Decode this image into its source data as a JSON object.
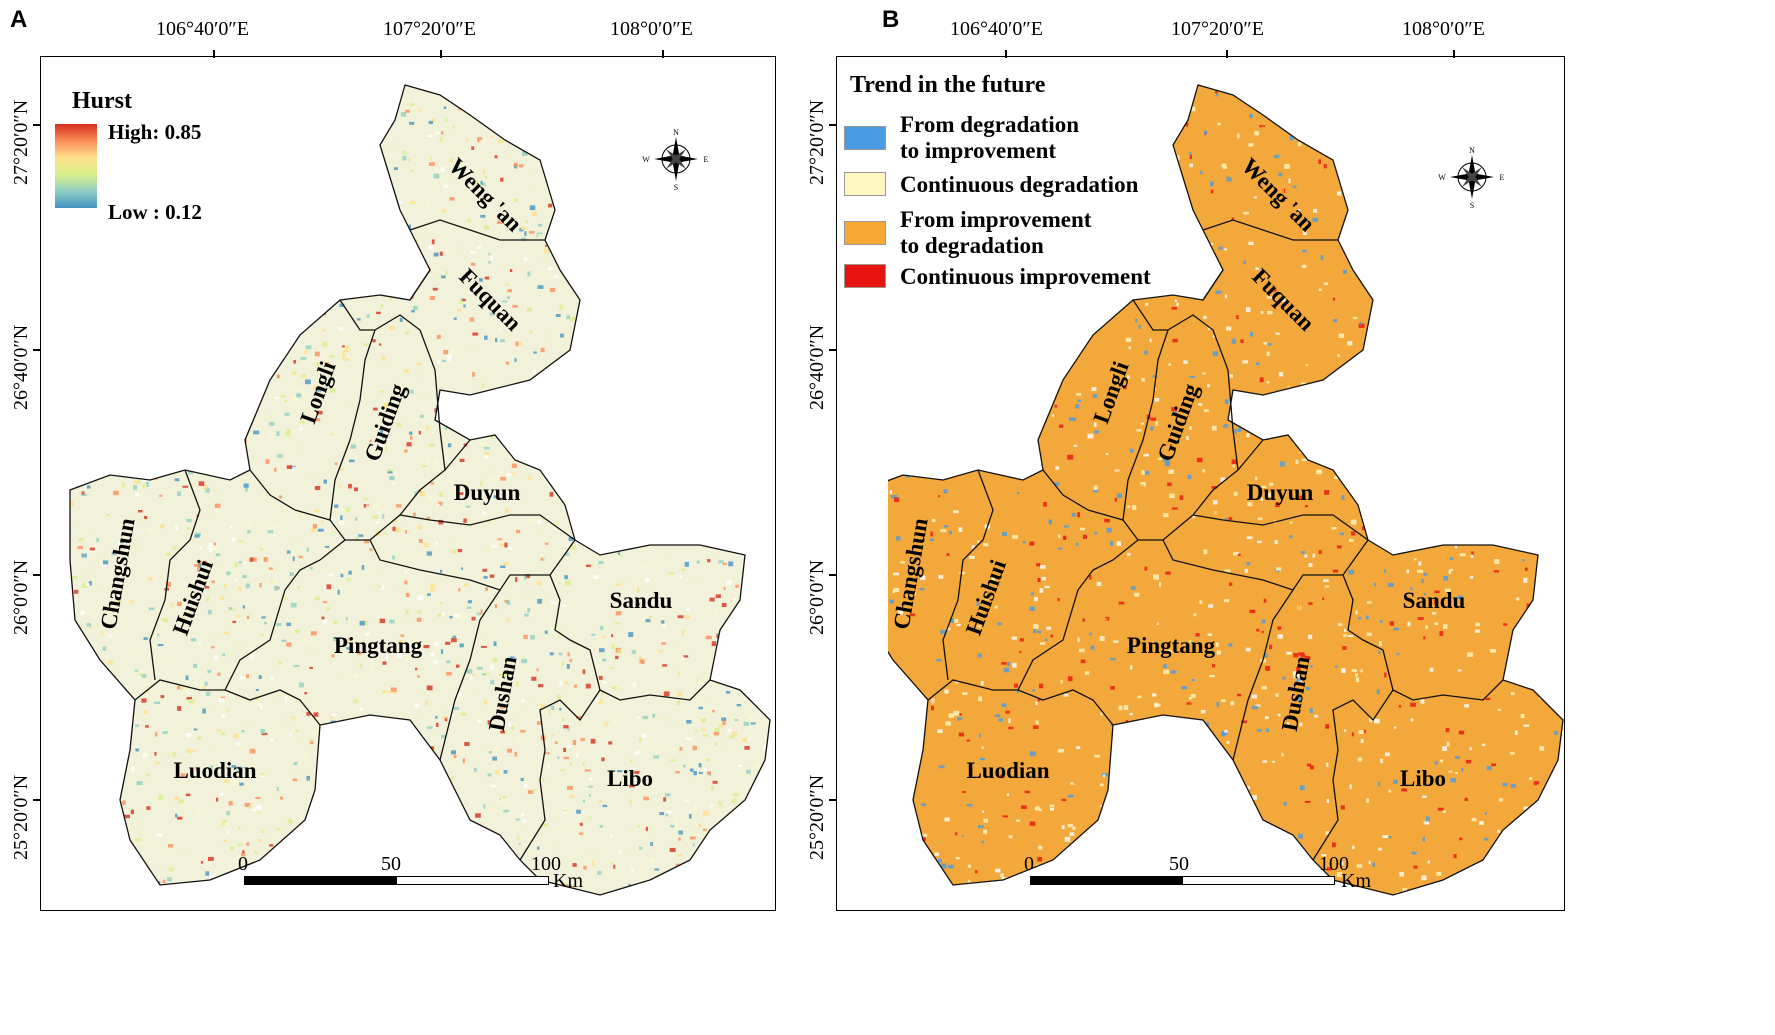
{
  "panels": [
    {
      "letter": "A",
      "longitudes": [
        "106°40′0″E",
        "107°20′0″E",
        "108°0′0″E"
      ],
      "latitudes": [
        "27°20′0″N",
        "26°40′0″N",
        "26°0′0″N",
        "25°20′0″N"
      ],
      "counties": [
        "Weng 'an",
        "Fuquan",
        "Longli",
        "Guiding",
        "Duyun",
        "Changshun",
        "Huishui",
        "Pingtang",
        "Sandu",
        "Dushan",
        "Luodian",
        "Libo"
      ],
      "legend": {
        "title": "Hurst",
        "high_label": "High: 0.85",
        "low_label": "Low : 0.12",
        "high_value": 0.85,
        "low_value": 0.12
      },
      "scale": {
        "ticks": [
          "0",
          "50",
          "100"
        ],
        "unit": "Km"
      },
      "compass_letters": [
        "N",
        "S",
        "W",
        "E"
      ]
    },
    {
      "letter": "B",
      "longitudes": [
        "106°40′0″E",
        "107°20′0″E",
        "108°0′0″E"
      ],
      "latitudes": [
        "27°20′0″N",
        "26°40′0″N",
        "26°0′0″N",
        "25°20′0″N"
      ],
      "counties": [
        "Weng 'an",
        "Fuquan",
        "Longli",
        "Guiding",
        "Duyun",
        "Changshun",
        "Huishui",
        "Pingtang",
        "Sandu",
        "Dushan",
        "Luodian",
        "Libo"
      ],
      "legend": {
        "title": "Trend in the future",
        "items": [
          {
            "label": "From degradation\nto improvement",
            "color": "#4a9be3"
          },
          {
            "label": "Continuous degradation",
            "color": "#fff8c2"
          },
          {
            "label": "From improvement\nto degradation",
            "color": "#f7a833"
          },
          {
            "label": "Continuous improvement",
            "color": "#e8140f"
          }
        ]
      },
      "scale": {
        "ticks": [
          "0",
          "50",
          "100"
        ],
        "unit": "Km"
      },
      "compass_letters": [
        "N",
        "S",
        "W",
        "E"
      ]
    }
  ],
  "colors": {
    "hurst_ramp": [
      "#d7301f",
      "#fc8d59",
      "#fee08b",
      "#d9ef8b",
      "#91cfc4",
      "#4393c3"
    ],
    "panel_b_base": "#f3a83c"
  }
}
